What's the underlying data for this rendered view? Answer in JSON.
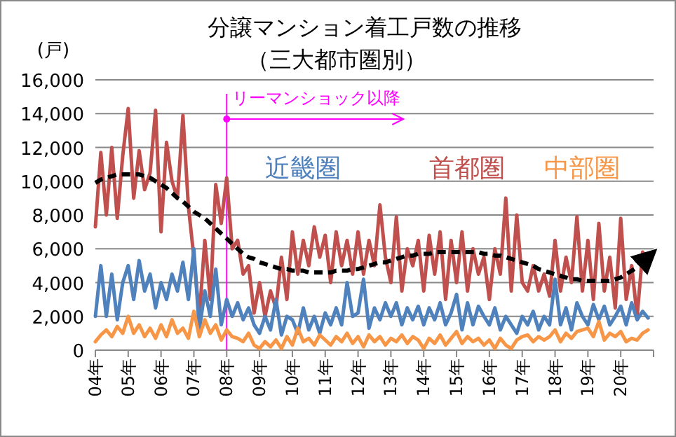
{
  "chart_data": {
    "type": "line",
    "title": "分譲マンション着工戸数の推移",
    "subtitle": "（三大都市圏別）",
    "ylabel": "(戸)",
    "categories": [
      "04年",
      null,
      null,
      null,
      null,
      null,
      "05年",
      null,
      null,
      null,
      null,
      null,
      "06年",
      null,
      null,
      null,
      null,
      null,
      "07年",
      null,
      null,
      null,
      null,
      null,
      "08年",
      null,
      null,
      null,
      null,
      null,
      "09年",
      null,
      null,
      null,
      null,
      null,
      "10年",
      null,
      null,
      null,
      null,
      null,
      "11年",
      null,
      null,
      null,
      null,
      null,
      "12年",
      null,
      null,
      null,
      null,
      null,
      "13年",
      null,
      null,
      null,
      null,
      null,
      "14年",
      null,
      null,
      null,
      null,
      null,
      "15年",
      null,
      null,
      null,
      null,
      null,
      "16年",
      null,
      null,
      null,
      null,
      null,
      "17年",
      null,
      null,
      null,
      null,
      null,
      "18年",
      null,
      null,
      null,
      null,
      null,
      "19年",
      null,
      null,
      null,
      null,
      null,
      "20年",
      null,
      null,
      null,
      null,
      null
    ],
    "ylim": [
      0,
      16000
    ],
    "yticks": [
      {
        "value": 0,
        "label": "0"
      },
      {
        "value": 2000,
        "label": "2,000"
      },
      {
        "value": 4000,
        "label": "4,000"
      },
      {
        "value": 6000,
        "label": "6,000"
      },
      {
        "value": 8000,
        "label": "8,000"
      },
      {
        "value": 10000,
        "label": "10,000"
      },
      {
        "value": 12000,
        "label": "12,000"
      },
      {
        "value": 14000,
        "label": "14,000"
      },
      {
        "value": 16000,
        "label": "16,000"
      }
    ],
    "grid": "y",
    "legend": false,
    "marker": "none",
    "ref_lines": [
      {
        "axis": "x",
        "value": "08年",
        "label": "リーマンショック以降",
        "color": "#ff00ff"
      }
    ],
    "series": [
      {
        "name": "首都圏",
        "color": "#c0504d",
        "values": [
          7300,
          11700,
          8000,
          12000,
          7800,
          11500,
          14300,
          9000,
          11800,
          9500,
          10500,
          14200,
          7000,
          12300,
          10000,
          9000,
          13900,
          8500,
          5500,
          2000,
          6500,
          3000,
          9800,
          7500,
          10200,
          6000,
          6500,
          4500,
          5000,
          2200,
          4000,
          2000,
          3500,
          2500,
          5500,
          3000,
          7000,
          4500,
          6500,
          5000,
          7300,
          5500,
          6800,
          4000,
          7000,
          5000,
          6500,
          4500,
          7000,
          4500,
          6500,
          5000,
          8600,
          5500,
          4000,
          7900,
          3500,
          6000,
          5000,
          6500,
          3500,
          6800,
          4500,
          7000,
          3000,
          6500,
          4000,
          7000,
          3500,
          6000,
          4500,
          5500,
          3000,
          6000,
          4500,
          9000,
          3500,
          8000,
          4000,
          3500,
          5000,
          3500,
          4500,
          3200,
          6500,
          3500,
          5500,
          4000,
          7900,
          3500,
          6500,
          3000,
          7500,
          3500,
          5500,
          2500,
          7800,
          3000,
          5000,
          2000,
          5800,
          5300
        ]
      },
      {
        "name": "近畿圏",
        "color": "#4f81bd",
        "values": [
          2000,
          5000,
          2000,
          4500,
          1800,
          4000,
          5000,
          3000,
          5300,
          3500,
          4500,
          2500,
          4000,
          3000,
          4500,
          3500,
          5200,
          3000,
          6000,
          1200,
          3500,
          2000,
          4800,
          1500,
          3000,
          2000,
          2800,
          1800,
          2500,
          1500,
          1000,
          2000,
          1200,
          3000,
          900,
          2000,
          1800,
          1000,
          2500,
          1200,
          2000,
          1000,
          2200,
          1500,
          2500,
          1500,
          4000,
          2000,
          2200,
          4200,
          1300,
          2500,
          1800,
          2800,
          2000,
          2800,
          1500,
          2500,
          1800,
          2600,
          1500,
          2500,
          1800,
          2800,
          1500,
          2200,
          3300,
          1200,
          2800,
          1500,
          2600,
          2000,
          1500,
          2500,
          1200,
          2000,
          1500,
          1000,
          2000,
          1500,
          2300,
          1200,
          2000,
          1500,
          4200,
          1500,
          2500,
          1200,
          2800,
          2000,
          1500,
          2700,
          1800,
          2600,
          1500,
          2000,
          2600,
          1500,
          2800,
          1800,
          2300,
          1900
        ]
      },
      {
        "name": "中部圏",
        "color": "#f79646",
        "values": [
          500,
          900,
          1200,
          800,
          1400,
          1000,
          2000,
          1000,
          1500,
          800,
          1300,
          700,
          1500,
          800,
          1800,
          1000,
          1300,
          700,
          2300,
          800,
          1800,
          1000,
          1500,
          600,
          1200,
          800,
          700,
          500,
          1000,
          300,
          100,
          500,
          200,
          600,
          100,
          800,
          300,
          1300,
          500,
          700,
          300,
          900,
          600,
          300,
          800,
          500,
          1000,
          400,
          800,
          200,
          900,
          500,
          800,
          300,
          700,
          500,
          900,
          400,
          800,
          600,
          100,
          700,
          400,
          900,
          300,
          700,
          1100,
          400,
          800,
          500,
          700,
          300,
          600,
          100,
          700,
          300,
          100,
          600,
          800,
          900,
          500,
          800,
          600,
          800,
          1200,
          500,
          1000,
          700,
          1100,
          1200,
          1300,
          800,
          1700,
          600,
          1000,
          800,
          1100,
          500,
          700,
          600,
          1000,
          1200
        ]
      },
      {
        "color": "#000000",
        "line_style": "dashed",
        "values": [
          9900,
          10100,
          10200,
          10300,
          10400,
          10400,
          10400,
          10400,
          10400,
          10300,
          10200,
          10000,
          9800,
          9600,
          9300,
          9000,
          8800,
          8500,
          8200,
          8000,
          7800,
          7500,
          7200,
          6900,
          6600,
          6300,
          6000,
          5700,
          5500,
          5400,
          5200,
          5100,
          5000,
          4900,
          4800,
          4800,
          4700,
          4700,
          4700,
          4600,
          4600,
          4600,
          4600,
          4600,
          4700,
          4700,
          4700,
          4800,
          4800,
          4900,
          5000,
          5100,
          5200,
          5200,
          5300,
          5400,
          5500,
          5600,
          5600,
          5700,
          5700,
          5700,
          5800,
          5800,
          5800,
          5800,
          5800,
          5800,
          5800,
          5800,
          5800,
          5700,
          5700,
          5600,
          5600,
          5500,
          5400,
          5300,
          5200,
          5100,
          5000,
          4800,
          4700,
          4600,
          4500,
          4400,
          4300,
          4200,
          4200,
          4100,
          4100,
          4100,
          4100,
          4100,
          4100,
          4200,
          4300,
          4500,
          4700,
          4900,
          5200,
          5500
        ]
      }
    ]
  }
}
